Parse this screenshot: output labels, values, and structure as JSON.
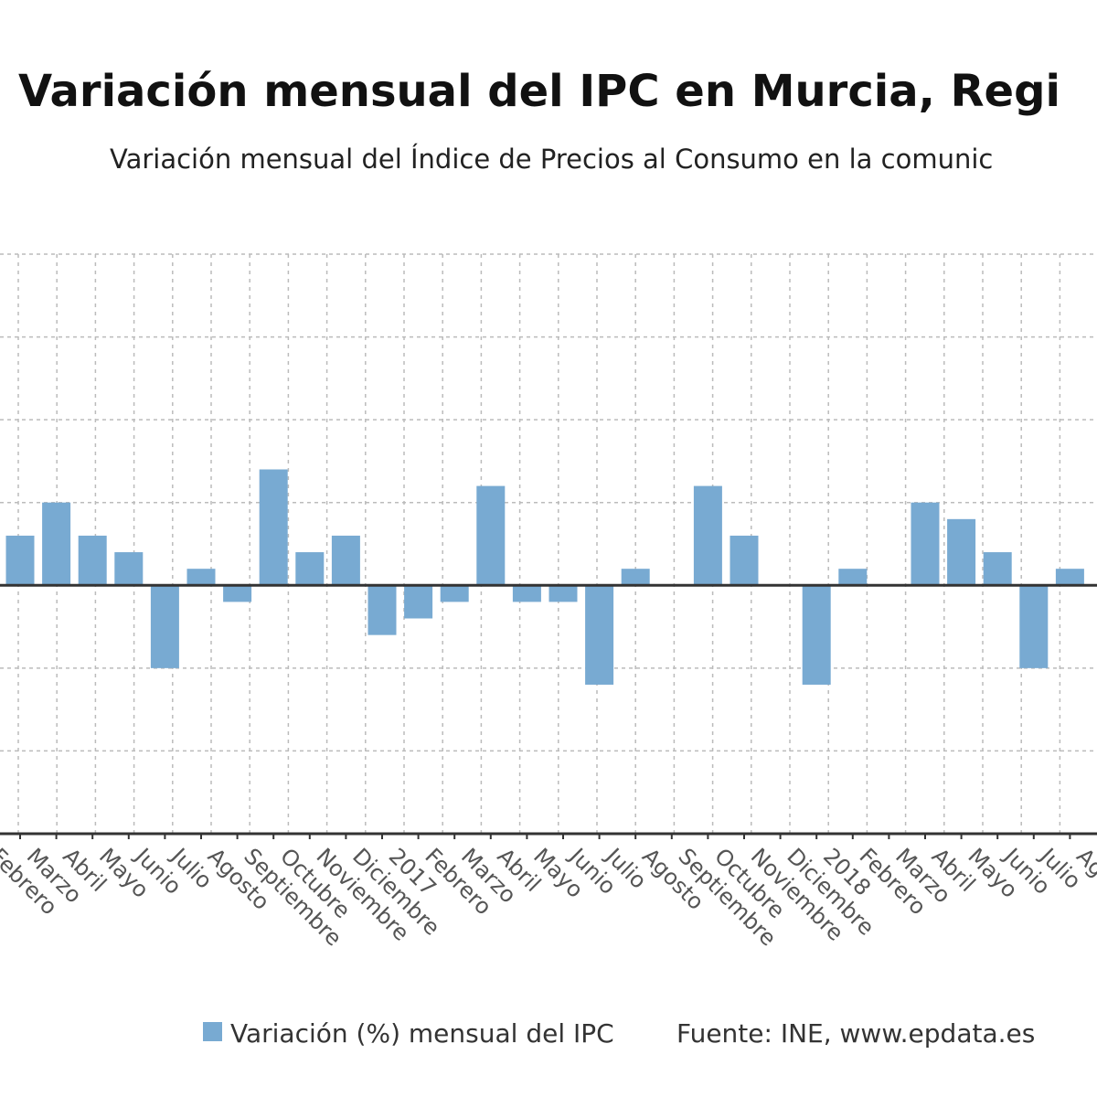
{
  "title": "Variación mensual del IPC en Murcia, Regi",
  "subtitle": "Variación mensual del Índice de Precios al Consumo en la comunic",
  "legend": {
    "series_label": "Variación (%) mensual del IPC",
    "source": "Fuente: INE, www.epdata.es"
  },
  "colors": {
    "bar": "#78aad2",
    "zero_line": "#333333",
    "grid": "#bbbbbb"
  },
  "chart_data": {
    "type": "bar",
    "title": "Variación mensual del IPC en Murcia, Regi",
    "subtitle": "Variación mensual del Índice de Precios al Consumo en la comunic",
    "xlabel": "",
    "ylabel": "",
    "ylim": [
      -1.5,
      2.0
    ],
    "grid": true,
    "legend_position": "bottom",
    "categories": [
      "Febrero",
      "Marzo",
      "Abril",
      "Mayo",
      "Junio",
      "Julio",
      "Agosto",
      "Septiembre",
      "Octubre",
      "Noviembre",
      "Diciembre",
      "2017",
      "Febrero",
      "Marzo",
      "Abril",
      "Mayo",
      "Junio",
      "Julio",
      "Agosto",
      "Septiembre",
      "Octubre",
      "Noviembre",
      "Diciembre",
      "2018",
      "Febrero",
      "Marzo",
      "Abril",
      "Mayo",
      "Junio",
      "Julio",
      "Agosto"
    ],
    "series": [
      {
        "name": "Variación (%) mensual del IPC",
        "values": [
          null,
          0.3,
          0.5,
          0.3,
          0.2,
          -0.5,
          0.1,
          -0.1,
          0.7,
          0.2,
          0.3,
          -0.3,
          -0.2,
          -0.1,
          0.6,
          -0.1,
          -0.1,
          -0.6,
          0.1,
          0.0,
          0.6,
          0.3,
          0.0,
          -0.6,
          0.1,
          0.0,
          0.5,
          0.4,
          0.2,
          -0.5,
          0.1
        ]
      }
    ]
  }
}
